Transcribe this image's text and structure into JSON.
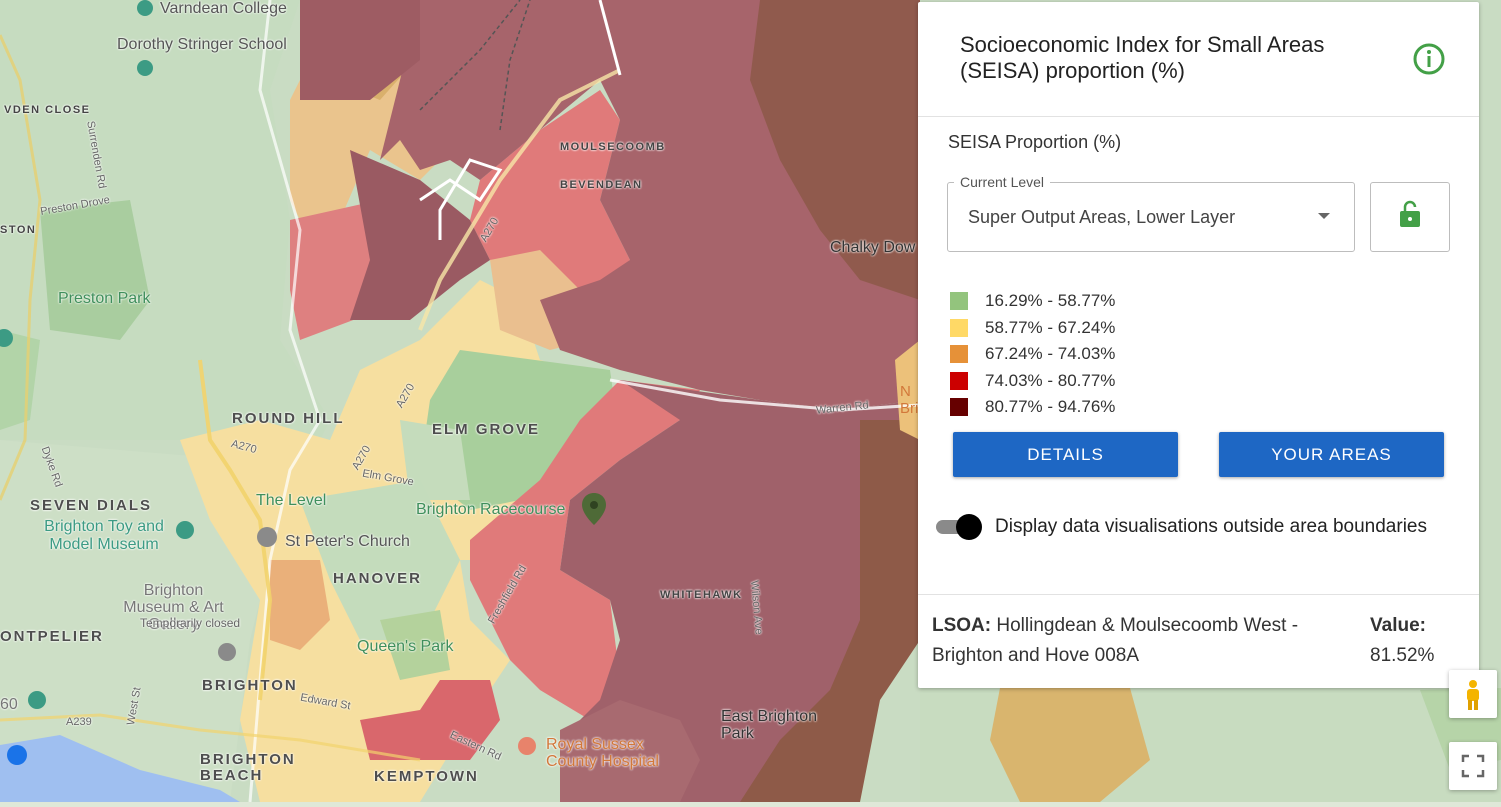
{
  "panel": {
    "title": "Socioeconomic Index for Small Areas (SEISA) proportion (%)",
    "subtitle": "SEISA Proportion (%)",
    "level_label": "Current Level",
    "level_value": "Super Output Areas, Lower Layer",
    "legend": [
      {
        "range": "16.29% - 58.77%",
        "color": "#93c47d"
      },
      {
        "range": "58.77% - 67.24%",
        "color": "#ffd966"
      },
      {
        "range": "67.24% - 74.03%",
        "color": "#e69138"
      },
      {
        "range": "74.03% - 80.77%",
        "color": "#cc0000"
      },
      {
        "range": "80.77% - 94.76%",
        "color": "#660000"
      }
    ],
    "details_button": "DETAILS",
    "your_areas_button": "YOUR AREAS",
    "toggle_label": "Display data visualisations outside area boundaries",
    "lsoa_label": "LSOA:",
    "lsoa_name": "Hollingdean & Moulsecoomb West - Brighton and Hove 008A",
    "value_label": "Value:",
    "value": "81.52%"
  },
  "map": {
    "labels": {
      "varndean": "Varndean College",
      "dorothy": "Dorothy Stringer School",
      "vden": "VDEN CLOSE",
      "surrenden": "Surrenden Rd",
      "preston_drove": "Preston Drove",
      "ston": "STON",
      "preston_park": "Preston Park",
      "round_hill": "ROUND HILL",
      "seven_dials": "SEVEN DIALS",
      "toy_museum": "Brighton Toy and Model Museum",
      "the_level": "The Level",
      "st_peters": "St Peter's Church",
      "hanover": "HANOVER",
      "museum": "Brighton Museum & Art Gallery",
      "temp_closed": "Temporarily closed",
      "ontpelier": "ONTPELIER",
      "queens_park": "Queen's Park",
      "brighton": "BRIGHTON",
      "edward_st": "Edward St",
      "brighton_beach": "BRIGHTON BEACH",
      "kemptown": "KEMPTOWN",
      "royal_sussex": "Royal Sussex County Hospital",
      "eastern_rd": "Eastern Rd",
      "east_brighton": "East Brighton Park",
      "whitehawk": "WHITEHAWK",
      "wilson_ave": "Wilson Ave",
      "racecourse": "Brighton Racecourse",
      "freshfield": "Freshfield Rd",
      "elm_grove_area": "ELM GROVE",
      "elm_grove_road": "Elm Grove",
      "moulsecoomb": "MOULSECOOMB",
      "bevendean": "BEVENDEAN",
      "chalky_down": "Chalky Dow",
      "warren_rd": "Warren Rd",
      "a270": "A270",
      "a239": "A239",
      "west_st": "West St",
      "dyke_rd": "Dyke Rd",
      "n_brig": "N Brig",
      "num_60": "60"
    }
  },
  "icons": {
    "info": "info-circle-icon",
    "lock": "lock-open-icon",
    "pegman": "pegman-icon",
    "fullscreen": "fullscreen-icon"
  }
}
